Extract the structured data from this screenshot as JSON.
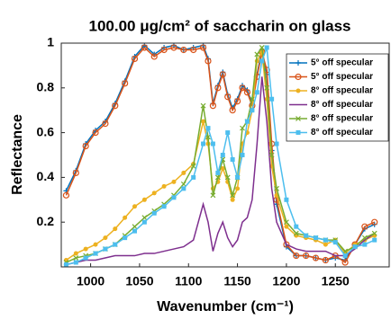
{
  "chart_data": {
    "type": "line",
    "title": "100.00 μg/cm² of saccharin on glass",
    "xlabel": "Wavenumber (cm⁻¹)",
    "ylabel": "Reflectance",
    "x": [
      975,
      985,
      995,
      1005,
      1015,
      1025,
      1035,
      1045,
      1055,
      1065,
      1075,
      1085,
      1095,
      1105,
      1115,
      1120,
      1125,
      1130,
      1135,
      1140,
      1145,
      1150,
      1155,
      1160,
      1165,
      1170,
      1175,
      1180,
      1185,
      1190,
      1200,
      1210,
      1220,
      1230,
      1240,
      1250,
      1260,
      1270,
      1280,
      1290
    ],
    "xlim": [
      970,
      1305
    ],
    "xticks": [
      1000,
      1050,
      1100,
      1150,
      1200,
      1250
    ],
    "ylim": [
      0,
      1
    ],
    "yticks": [
      0.2,
      0.4,
      0.6,
      0.8,
      1
    ],
    "legend": "upper right",
    "series": [
      {
        "name": "5° off specular",
        "color": "#0072bd",
        "marker": "plus",
        "values": [
          0.34,
          0.43,
          0.55,
          0.61,
          0.65,
          0.73,
          0.83,
          0.94,
          0.99,
          0.95,
          0.98,
          0.99,
          0.97,
          0.98,
          0.99,
          0.93,
          0.73,
          0.81,
          0.87,
          0.77,
          0.71,
          0.75,
          0.81,
          0.79,
          0.73,
          0.86,
          0.97,
          0.86,
          0.52,
          0.28,
          0.09,
          0.05,
          0.05,
          0.04,
          0.03,
          0.04,
          0.03,
          0.1,
          0.17,
          0.19
        ]
      },
      {
        "name": "5° off specular",
        "color": "#d95319",
        "marker": "circle",
        "values": [
          0.32,
          0.42,
          0.54,
          0.6,
          0.64,
          0.72,
          0.82,
          0.93,
          0.98,
          0.94,
          0.97,
          0.98,
          0.97,
          0.97,
          0.98,
          0.92,
          0.72,
          0.8,
          0.86,
          0.76,
          0.7,
          0.74,
          0.8,
          0.78,
          0.72,
          0.85,
          0.96,
          0.88,
          0.55,
          0.3,
          0.1,
          0.05,
          0.05,
          0.04,
          0.03,
          0.05,
          0.02,
          0.1,
          0.18,
          0.2
        ]
      },
      {
        "name": "8° off specular",
        "color": "#edb120",
        "marker": "dot",
        "values": [
          0.03,
          0.06,
          0.08,
          0.1,
          0.13,
          0.17,
          0.22,
          0.27,
          0.3,
          0.33,
          0.36,
          0.38,
          0.42,
          0.46,
          0.65,
          0.55,
          0.35,
          0.38,
          0.44,
          0.38,
          0.3,
          0.35,
          0.55,
          0.6,
          0.7,
          0.92,
          0.96,
          0.75,
          0.45,
          0.32,
          0.18,
          0.14,
          0.13,
          0.12,
          0.1,
          0.12,
          0.06,
          0.1,
          0.12,
          0.14
        ]
      },
      {
        "name": "8° off specular",
        "color": "#7e2f8e",
        "marker": "none",
        "values": [
          0.01,
          0.02,
          0.03,
          0.03,
          0.04,
          0.05,
          0.05,
          0.05,
          0.06,
          0.06,
          0.07,
          0.08,
          0.09,
          0.12,
          0.28,
          0.2,
          0.07,
          0.15,
          0.2,
          0.13,
          0.09,
          0.12,
          0.2,
          0.22,
          0.3,
          0.55,
          0.85,
          0.65,
          0.35,
          0.2,
          0.1,
          0.08,
          0.07,
          0.07,
          0.07,
          0.05,
          0.05,
          0.08,
          0.12,
          0.15
        ]
      },
      {
        "name": "8° off specular",
        "color": "#77ac30",
        "marker": "x",
        "values": [
          0.02,
          0.04,
          0.05,
          0.06,
          0.08,
          0.1,
          0.14,
          0.18,
          0.22,
          0.25,
          0.28,
          0.32,
          0.37,
          0.45,
          0.72,
          0.58,
          0.32,
          0.4,
          0.48,
          0.4,
          0.32,
          0.4,
          0.62,
          0.65,
          0.75,
          0.95,
          0.98,
          0.8,
          0.5,
          0.35,
          0.2,
          0.15,
          0.14,
          0.13,
          0.12,
          0.12,
          0.07,
          0.09,
          0.13,
          0.15
        ]
      },
      {
        "name": "8° off specular",
        "color": "#4dbeee",
        "marker": "square",
        "values": [
          0.01,
          0.02,
          0.04,
          0.06,
          0.08,
          0.1,
          0.13,
          0.16,
          0.2,
          0.24,
          0.27,
          0.31,
          0.35,
          0.4,
          0.55,
          0.62,
          0.55,
          0.42,
          0.5,
          0.6,
          0.48,
          0.4,
          0.5,
          0.65,
          0.7,
          0.78,
          0.92,
          0.98,
          0.75,
          0.55,
          0.3,
          0.18,
          0.14,
          0.13,
          0.12,
          0.11,
          0.05,
          0.09,
          0.1,
          0.12
        ]
      }
    ]
  }
}
